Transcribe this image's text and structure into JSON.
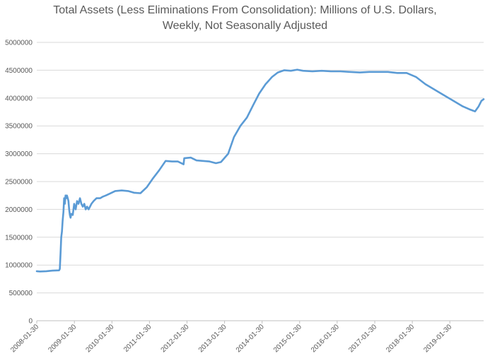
{
  "chart_data": {
    "type": "line",
    "title_lines": [
      "Total Assets (Less Eliminations From Consolidation): Millions of U.S. Dollars,",
      "Weekly, Not Seasonally Adjusted"
    ],
    "xlabel": "",
    "ylabel": "",
    "ylim": [
      0,
      5000000
    ],
    "y_ticks": [
      0,
      500000,
      1000000,
      1500000,
      2000000,
      2500000,
      3000000,
      3500000,
      4000000,
      4500000,
      5000000
    ],
    "x_range": [
      "2008-01-30",
      "2019-12-25"
    ],
    "x_ticks": [
      "2008-01-30",
      "2009-01-30",
      "2010-01-30",
      "2011-01-30",
      "2012-01-30",
      "2013-01-30",
      "2014-01-30",
      "2015-01-30",
      "2016-01-30",
      "2017-01-30",
      "2018-01-30",
      "2019-01-30"
    ],
    "grid": true,
    "legend": "none",
    "line_color": "#5b9bd5",
    "series": [
      {
        "x": [
          "2008-01-30",
          "2008-03-01",
          "2008-05-01",
          "2008-07-01",
          "2008-09-03",
          "2008-09-10",
          "2008-09-17",
          "2008-09-24",
          "2008-10-01",
          "2008-10-08",
          "2008-10-15",
          "2008-10-22",
          "2008-10-29",
          "2008-11-05",
          "2008-11-12",
          "2008-11-19",
          "2008-11-26",
          "2008-12-03",
          "2008-12-10",
          "2008-12-17",
          "2008-12-24",
          "2008-12-31",
          "2009-01-14",
          "2009-01-28",
          "2009-02-11",
          "2009-02-25",
          "2009-03-11",
          "2009-03-25",
          "2009-04-08",
          "2009-04-22",
          "2009-05-06",
          "2009-05-20",
          "2009-06-03",
          "2009-06-17",
          "2009-07-01",
          "2009-07-15",
          "2009-08-05",
          "2009-09-02",
          "2009-10-07",
          "2009-11-04",
          "2009-12-02",
          "2010-01-06",
          "2010-03-03",
          "2010-05-05",
          "2010-07-07",
          "2010-09-01",
          "2010-11-03",
          "2011-01-05",
          "2011-03-02",
          "2011-05-04",
          "2011-07-06",
          "2011-09-07",
          "2011-11-02",
          "2011-12-28",
          "2012-01-04",
          "2012-03-07",
          "2012-05-02",
          "2012-07-04",
          "2012-09-05",
          "2012-11-07",
          "2012-12-26",
          "2013-03-06",
          "2013-05-01",
          "2013-07-03",
          "2013-09-04",
          "2013-11-06",
          "2014-01-01",
          "2014-03-05",
          "2014-05-07",
          "2014-07-02",
          "2014-09-03",
          "2014-11-05",
          "2015-01-07",
          "2015-03-04",
          "2015-06-03",
          "2015-09-02",
          "2015-12-02",
          "2016-03-02",
          "2016-06-01",
          "2016-09-07",
          "2016-12-07",
          "2017-03-01",
          "2017-06-07",
          "2017-09-06",
          "2017-12-06",
          "2018-03-07",
          "2018-06-06",
          "2018-09-05",
          "2018-12-05",
          "2019-03-06",
          "2019-06-05",
          "2019-08-07",
          "2019-09-04",
          "2019-10-02",
          "2019-11-06",
          "2019-12-04",
          "2019-12-25"
        ],
        "values": [
          890000,
          885000,
          890000,
          900000,
          905000,
          930000,
          1200000,
          1500000,
          1600000,
          1800000,
          1950000,
          2200000,
          2100000,
          2250000,
          2200000,
          2250000,
          2200000,
          2150000,
          2000000,
          1900000,
          1850000,
          1920000,
          1900000,
          2100000,
          2000000,
          2150000,
          2100000,
          2200000,
          2100000,
          2050000,
          2100000,
          2000000,
          2050000,
          2000000,
          2050000,
          2100000,
          2150000,
          2200000,
          2200000,
          2230000,
          2250000,
          2280000,
          2330000,
          2340000,
          2330000,
          2300000,
          2290000,
          2400000,
          2550000,
          2700000,
          2870000,
          2860000,
          2860000,
          2810000,
          2920000,
          2930000,
          2880000,
          2870000,
          2860000,
          2830000,
          2850000,
          3000000,
          3300000,
          3500000,
          3650000,
          3880000,
          4080000,
          4250000,
          4380000,
          4460000,
          4500000,
          4490000,
          4510000,
          4490000,
          4480000,
          4490000,
          4480000,
          4480000,
          4470000,
          4460000,
          4470000,
          4470000,
          4470000,
          4450000,
          4450000,
          4380000,
          4250000,
          4150000,
          4050000,
          3950000,
          3850000,
          3800000,
          3780000,
          3760000,
          3850000,
          3950000,
          3980000
        ]
      }
    ]
  }
}
